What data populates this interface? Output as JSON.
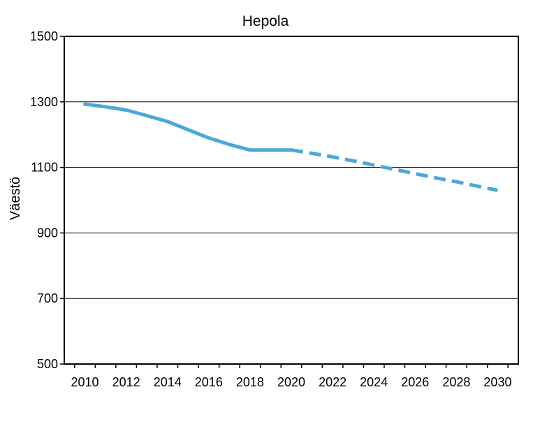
{
  "chart_data": {
    "type": "line",
    "title": "Hepola",
    "xlabel": "",
    "ylabel": "Väestö",
    "xlim": [
      2009,
      2031
    ],
    "ylim": [
      500,
      1500
    ],
    "yticks": [
      500,
      700,
      900,
      1100,
      1300,
      1500
    ],
    "xticks": [
      2010,
      2012,
      2014,
      2016,
      2018,
      2020,
      2022,
      2024,
      2026,
      2028,
      2030
    ],
    "grid": "horizontal",
    "legend": "none",
    "series": [
      {
        "style": "solid",
        "color": "#4aa8d8",
        "x": [
          2010,
          2011,
          2012,
          2013,
          2014,
          2015,
          2016,
          2017,
          2018,
          2019,
          2020
        ],
        "y": [
          1293,
          1285,
          1275,
          1258,
          1240,
          1215,
          1190,
          1170,
          1153,
          1153,
          1153
        ]
      },
      {
        "style": "dashed",
        "color": "#4aa8d8",
        "x": [
          2020,
          2021,
          2022,
          2023,
          2024,
          2025,
          2026,
          2027,
          2028,
          2029,
          2030
        ],
        "y": [
          1153,
          1143,
          1132,
          1120,
          1107,
          1094,
          1081,
          1068,
          1056,
          1043,
          1030
        ]
      }
    ]
  }
}
